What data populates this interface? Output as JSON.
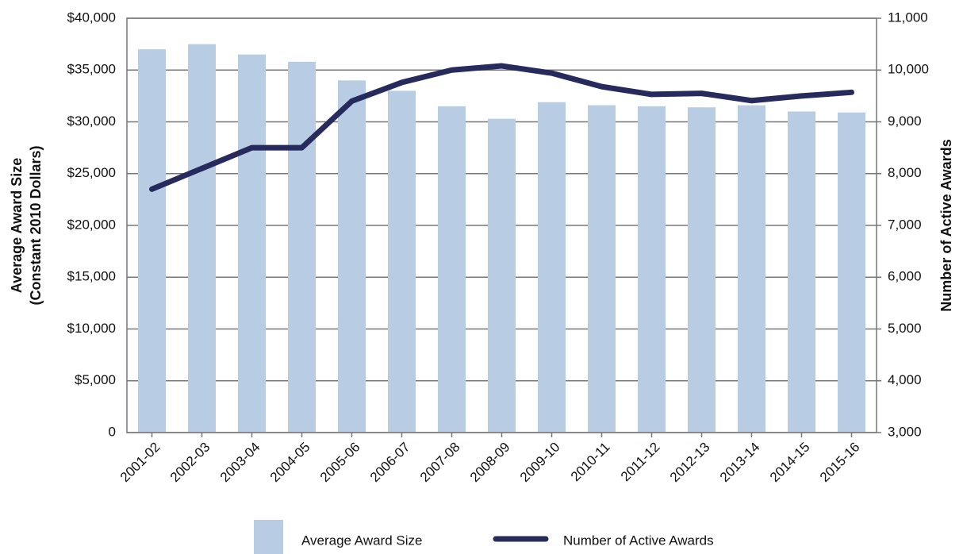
{
  "chart_data": {
    "type": "bar_line",
    "categories": [
      "2001-02",
      "2002-03",
      "2003-04",
      "2004-05",
      "2005-06",
      "2006-07",
      "2007-08",
      "2008-09",
      "2009-10",
      "2010-11",
      "2011-12",
      "2012-13",
      "2013-14",
      "2014-15",
      "2015-16"
    ],
    "series": [
      {
        "name": "Average Award Size",
        "type": "bar",
        "color": "#b8cce4",
        "axis": "y",
        "values": [
          37000,
          37500,
          36500,
          35800,
          34000,
          33000,
          31500,
          30300,
          31900,
          31600,
          31500,
          31400,
          31600,
          31000,
          30900
        ]
      },
      {
        "name": "Number of Active Awards",
        "type": "line",
        "color": "#262a5c",
        "axis": "y2",
        "values": [
          7700,
          8100,
          8500,
          8500,
          9400,
          9760,
          10000,
          10080,
          9940,
          9680,
          9530,
          9550,
          9410,
          9500,
          9570
        ]
      }
    ],
    "y_label": [
      "Average Award Size",
      "(Constant 2010 Dollars)"
    ],
    "y2_label": "Number of Active Awards",
    "ylim": [
      0,
      40000
    ],
    "yticks": [
      0,
      {
        "value": 5000,
        "label": "$5,000"
      },
      {
        "value": 10000,
        "label": "$10,000"
      },
      {
        "value": 15000,
        "label": "$15,000"
      },
      {
        "value": 20000,
        "label": "$20,000"
      },
      {
        "value": 25000,
        "label": "$25,000"
      },
      {
        "value": 30000,
        "label": "$30,000"
      },
      {
        "value": 35000,
        "label": "$35,000"
      },
      {
        "value": 40000,
        "label": "$40,000"
      }
    ],
    "y2lim": [
      3000,
      11000
    ],
    "y2ticks": [
      {
        "value": 3000,
        "label": "3,000"
      },
      {
        "value": 4000,
        "label": "4,000"
      },
      {
        "value": 5000,
        "label": "5,000"
      },
      {
        "value": 6000,
        "label": "6,000"
      },
      {
        "value": 7000,
        "label": "7,000"
      },
      {
        "value": 8000,
        "label": "8,000"
      },
      {
        "value": 9000,
        "label": "9,000"
      },
      {
        "value": 10000,
        "label": "10,000"
      },
      {
        "value": 11000,
        "label": "11,000"
      }
    ],
    "grid": true,
    "legend": "bottom"
  }
}
